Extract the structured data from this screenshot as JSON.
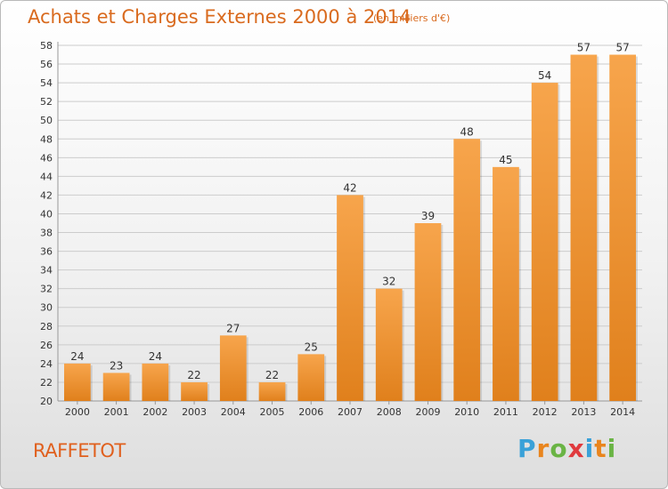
{
  "title": "Achats et Charges Externes 2000 à 2014",
  "subtitle": "(en milliers d'€)",
  "place": "RAFFETOT",
  "brand": {
    "letters": [
      "P",
      "r",
      "o",
      "x",
      "i",
      "t",
      "i"
    ],
    "colors": [
      "#3aa1d8",
      "#e9851e",
      "#6ab445",
      "#e03a3e",
      "#3aa1d8",
      "#e9851e",
      "#6ab445"
    ]
  },
  "colors": {
    "bar_light": "#f7a54c",
    "bar_dark": "#e0801c",
    "grid": "#cccccc",
    "text": "#333333",
    "accent": "#d96a1e"
  },
  "chart_data": {
    "type": "bar",
    "title": "Achats et Charges Externes 2000 à 2014",
    "subtitle": "(en milliers d'€)",
    "categories": [
      "2000",
      "2001",
      "2002",
      "2003",
      "2004",
      "2005",
      "2006",
      "2007",
      "2008",
      "2009",
      "2010",
      "2011",
      "2012",
      "2013",
      "2014"
    ],
    "values": [
      24,
      23,
      24,
      22,
      27,
      22,
      25,
      42,
      32,
      39,
      48,
      45,
      54,
      57,
      57
    ],
    "ylim": [
      20,
      58
    ],
    "yticks": [
      20,
      22,
      24,
      26,
      28,
      30,
      32,
      34,
      36,
      38,
      40,
      42,
      44,
      46,
      48,
      50,
      52,
      54,
      56,
      58
    ],
    "grid": true,
    "legend": "none"
  }
}
